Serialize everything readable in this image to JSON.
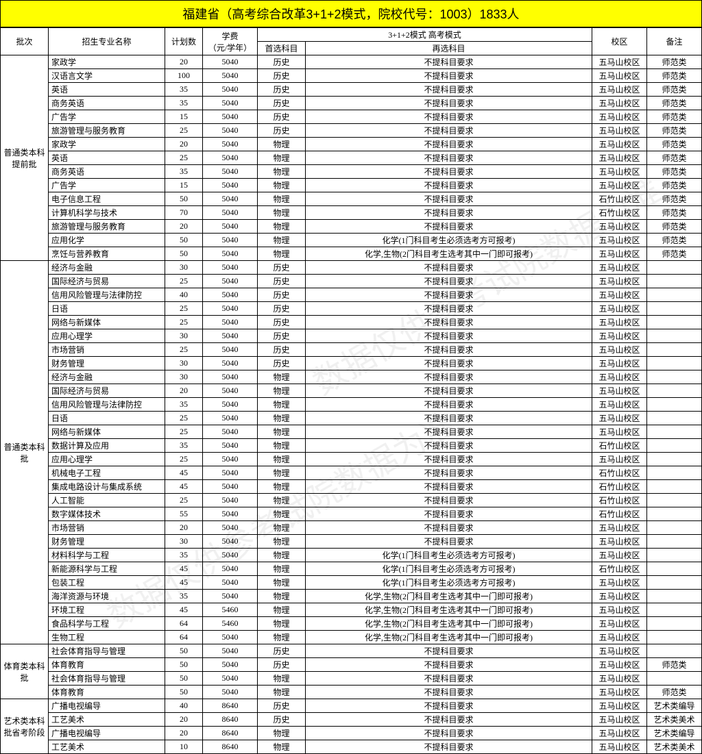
{
  "title": "福建省（高考综合改革3+1+2模式，院校代号：1003）1833人",
  "headers": {
    "batch": "批次",
    "major": "招生专业名称",
    "plan": "计划数",
    "fee": "学费\n（元/学年）",
    "mode_group": "3+1+2模式 高考模式",
    "sub1": "首选科目",
    "sub2": "再选科目",
    "campus": "校区",
    "note": "备注"
  },
  "fee_line1": "学费",
  "fee_line2": "（元/学年）",
  "groups": [
    {
      "batch": "普通类本科提前批",
      "rows": [
        {
          "major": "家政学",
          "plan": "20",
          "fee": "5040",
          "sub1": "历史",
          "sub2": "不提科目要求",
          "campus": "五马山校区",
          "note": "师范类"
        },
        {
          "major": "汉语言文学",
          "plan": "100",
          "fee": "5040",
          "sub1": "历史",
          "sub2": "不提科目要求",
          "campus": "五马山校区",
          "note": "师范类"
        },
        {
          "major": "英语",
          "plan": "35",
          "fee": "5040",
          "sub1": "历史",
          "sub2": "不提科目要求",
          "campus": "五马山校区",
          "note": "师范类"
        },
        {
          "major": "商务英语",
          "plan": "35",
          "fee": "5040",
          "sub1": "历史",
          "sub2": "不提科目要求",
          "campus": "五马山校区",
          "note": "师范类"
        },
        {
          "major": "广告学",
          "plan": "15",
          "fee": "5040",
          "sub1": "历史",
          "sub2": "不提科目要求",
          "campus": "五马山校区",
          "note": "师范类"
        },
        {
          "major": "旅游管理与服务教育",
          "plan": "25",
          "fee": "5040",
          "sub1": "历史",
          "sub2": "不提科目要求",
          "campus": "五马山校区",
          "note": "师范类"
        },
        {
          "major": "家政学",
          "plan": "20",
          "fee": "5040",
          "sub1": "物理",
          "sub2": "不提科目要求",
          "campus": "五马山校区",
          "note": "师范类"
        },
        {
          "major": "英语",
          "plan": "25",
          "fee": "5040",
          "sub1": "物理",
          "sub2": "不提科目要求",
          "campus": "五马山校区",
          "note": "师范类"
        },
        {
          "major": "商务英语",
          "plan": "35",
          "fee": "5040",
          "sub1": "物理",
          "sub2": "不提科目要求",
          "campus": "五马山校区",
          "note": "师范类"
        },
        {
          "major": "广告学",
          "plan": "15",
          "fee": "5040",
          "sub1": "物理",
          "sub2": "不提科目要求",
          "campus": "五马山校区",
          "note": "师范类"
        },
        {
          "major": "电子信息工程",
          "plan": "50",
          "fee": "5040",
          "sub1": "物理",
          "sub2": "不提科目要求",
          "campus": "石竹山校区",
          "note": "师范类"
        },
        {
          "major": "计算机科学与技术",
          "plan": "70",
          "fee": "5040",
          "sub1": "物理",
          "sub2": "不提科目要求",
          "campus": "石竹山校区",
          "note": "师范类"
        },
        {
          "major": "旅游管理与服务教育",
          "plan": "20",
          "fee": "5040",
          "sub1": "物理",
          "sub2": "不提科目要求",
          "campus": "五马山校区",
          "note": "师范类"
        },
        {
          "major": "应用化学",
          "plan": "50",
          "fee": "5040",
          "sub1": "物理",
          "sub2": "化学(1门科目考生必须选考方可报考)",
          "campus": "五马山校区",
          "note": "师范类"
        },
        {
          "major": "烹饪与营养教育",
          "plan": "50",
          "fee": "5040",
          "sub1": "物理",
          "sub2": "化学,生物(2门科目考生选考其中一门即可报考)",
          "campus": "五马山校区",
          "note": "师范类"
        }
      ]
    },
    {
      "batch": "普通类本科批",
      "rows": [
        {
          "major": "经济与金融",
          "plan": "30",
          "fee": "5040",
          "sub1": "历史",
          "sub2": "不提科目要求",
          "campus": "五马山校区",
          "note": ""
        },
        {
          "major": "国际经济与贸易",
          "plan": "25",
          "fee": "5040",
          "sub1": "历史",
          "sub2": "不提科目要求",
          "campus": "五马山校区",
          "note": ""
        },
        {
          "major": "信用风险管理与法律防控",
          "plan": "40",
          "fee": "5040",
          "sub1": "历史",
          "sub2": "不提科目要求",
          "campus": "五马山校区",
          "note": ""
        },
        {
          "major": "日语",
          "plan": "25",
          "fee": "5040",
          "sub1": "历史",
          "sub2": "不提科目要求",
          "campus": "五马山校区",
          "note": ""
        },
        {
          "major": "网络与新媒体",
          "plan": "25",
          "fee": "5040",
          "sub1": "历史",
          "sub2": "不提科目要求",
          "campus": "五马山校区",
          "note": ""
        },
        {
          "major": "应用心理学",
          "plan": "30",
          "fee": "5040",
          "sub1": "历史",
          "sub2": "不提科目要求",
          "campus": "五马山校区",
          "note": ""
        },
        {
          "major": "市场营销",
          "plan": "25",
          "fee": "5040",
          "sub1": "历史",
          "sub2": "不提科目要求",
          "campus": "五马山校区",
          "note": ""
        },
        {
          "major": "财务管理",
          "plan": "30",
          "fee": "5040",
          "sub1": "历史",
          "sub2": "不提科目要求",
          "campus": "五马山校区",
          "note": ""
        },
        {
          "major": "经济与金融",
          "plan": "30",
          "fee": "5040",
          "sub1": "物理",
          "sub2": "不提科目要求",
          "campus": "五马山校区",
          "note": ""
        },
        {
          "major": "国际经济与贸易",
          "plan": "20",
          "fee": "5040",
          "sub1": "物理",
          "sub2": "不提科目要求",
          "campus": "五马山校区",
          "note": ""
        },
        {
          "major": "信用风险管理与法律防控",
          "plan": "35",
          "fee": "5040",
          "sub1": "物理",
          "sub2": "不提科目要求",
          "campus": "五马山校区",
          "note": ""
        },
        {
          "major": "日语",
          "plan": "25",
          "fee": "5040",
          "sub1": "物理",
          "sub2": "不提科目要求",
          "campus": "五马山校区",
          "note": ""
        },
        {
          "major": "网络与新媒体",
          "plan": "25",
          "fee": "5040",
          "sub1": "物理",
          "sub2": "不提科目要求",
          "campus": "五马山校区",
          "note": ""
        },
        {
          "major": "数据计算及应用",
          "plan": "35",
          "fee": "5040",
          "sub1": "物理",
          "sub2": "不提科目要求",
          "campus": "石竹山校区",
          "note": ""
        },
        {
          "major": "应用心理学",
          "plan": "25",
          "fee": "5040",
          "sub1": "物理",
          "sub2": "不提科目要求",
          "campus": "五马山校区",
          "note": ""
        },
        {
          "major": "机械电子工程",
          "plan": "45",
          "fee": "5040",
          "sub1": "物理",
          "sub2": "不提科目要求",
          "campus": "石竹山校区",
          "note": ""
        },
        {
          "major": "集成电路设计与集成系统",
          "plan": "45",
          "fee": "5040",
          "sub1": "物理",
          "sub2": "不提科目要求",
          "campus": "石竹山校区",
          "note": ""
        },
        {
          "major": "人工智能",
          "plan": "25",
          "fee": "5040",
          "sub1": "物理",
          "sub2": "不提科目要求",
          "campus": "石竹山校区",
          "note": ""
        },
        {
          "major": "数字媒体技术",
          "plan": "55",
          "fee": "5040",
          "sub1": "物理",
          "sub2": "不提科目要求",
          "campus": "石竹山校区",
          "note": ""
        },
        {
          "major": "市场营销",
          "plan": "20",
          "fee": "5040",
          "sub1": "物理",
          "sub2": "不提科目要求",
          "campus": "五马山校区",
          "note": ""
        },
        {
          "major": "财务管理",
          "plan": "30",
          "fee": "5040",
          "sub1": "物理",
          "sub2": "不提科目要求",
          "campus": "五马山校区",
          "note": ""
        },
        {
          "major": "材料科学与工程",
          "plan": "35",
          "fee": "5040",
          "sub1": "物理",
          "sub2": "化学(1门科目考生必须选考方可报考)",
          "campus": "五马山校区",
          "note": ""
        },
        {
          "major": "新能源科学与工程",
          "plan": "45",
          "fee": "5040",
          "sub1": "物理",
          "sub2": "化学(1门科目考生必须选考方可报考)",
          "campus": "石竹山校区",
          "note": ""
        },
        {
          "major": "包装工程",
          "plan": "45",
          "fee": "5040",
          "sub1": "物理",
          "sub2": "化学(1门科目考生必须选考方可报考)",
          "campus": "五马山校区",
          "note": ""
        },
        {
          "major": "海洋资源与环境",
          "plan": "35",
          "fee": "5040",
          "sub1": "物理",
          "sub2": "化学,生物(2门科目考生选考其中一门即可报考)",
          "campus": "五马山校区",
          "note": ""
        },
        {
          "major": "环境工程",
          "plan": "45",
          "fee": "5460",
          "sub1": "物理",
          "sub2": "化学,生物(2门科目考生选考其中一门即可报考)",
          "campus": "五马山校区",
          "note": ""
        },
        {
          "major": "食品科学与工程",
          "plan": "64",
          "fee": "5460",
          "sub1": "物理",
          "sub2": "化学,生物(2门科目考生选考其中一门即可报考)",
          "campus": "五马山校区",
          "note": ""
        },
        {
          "major": "生物工程",
          "plan": "64",
          "fee": "5040",
          "sub1": "物理",
          "sub2": "化学,生物(2门科目考生选考其中一门即可报考)",
          "campus": "五马山校区",
          "note": ""
        }
      ]
    },
    {
      "batch": "体育类本科批",
      "rows": [
        {
          "major": "社会体育指导与管理",
          "plan": "50",
          "fee": "5040",
          "sub1": "历史",
          "sub2": "不提科目要求",
          "campus": "五马山校区",
          "note": ""
        },
        {
          "major": "体育教育",
          "plan": "50",
          "fee": "5040",
          "sub1": "历史",
          "sub2": "不提科目要求",
          "campus": "五马山校区",
          "note": "师范类"
        },
        {
          "major": "社会体育指导与管理",
          "plan": "50",
          "fee": "5040",
          "sub1": "物理",
          "sub2": "不提科目要求",
          "campus": "五马山校区",
          "note": ""
        },
        {
          "major": "体育教育",
          "plan": "50",
          "fee": "5040",
          "sub1": "物理",
          "sub2": "不提科目要求",
          "campus": "五马山校区",
          "note": "师范类"
        }
      ]
    },
    {
      "batch": "艺术类本科批省考阶段",
      "rows": [
        {
          "major": "广播电视编导",
          "plan": "40",
          "fee": "8640",
          "sub1": "历史",
          "sub2": "不提科目要求",
          "campus": "五马山校区",
          "note": "艺术类编导"
        },
        {
          "major": "工艺美术",
          "plan": "20",
          "fee": "8640",
          "sub1": "历史",
          "sub2": "不提科目要求",
          "campus": "五马山校区",
          "note": "艺术类美术"
        },
        {
          "major": "广播电视编导",
          "plan": "20",
          "fee": "8640",
          "sub1": "物理",
          "sub2": "不提科目要求",
          "campus": "五马山校区",
          "note": "艺术类编导"
        },
        {
          "major": "工艺美术",
          "plan": "10",
          "fee": "8640",
          "sub1": "物理",
          "sub2": "不提科目要求",
          "campus": "五马山校区",
          "note": "艺术类美术"
        }
      ]
    }
  ],
  "watermark": "数据仅供参考试院数据为准"
}
